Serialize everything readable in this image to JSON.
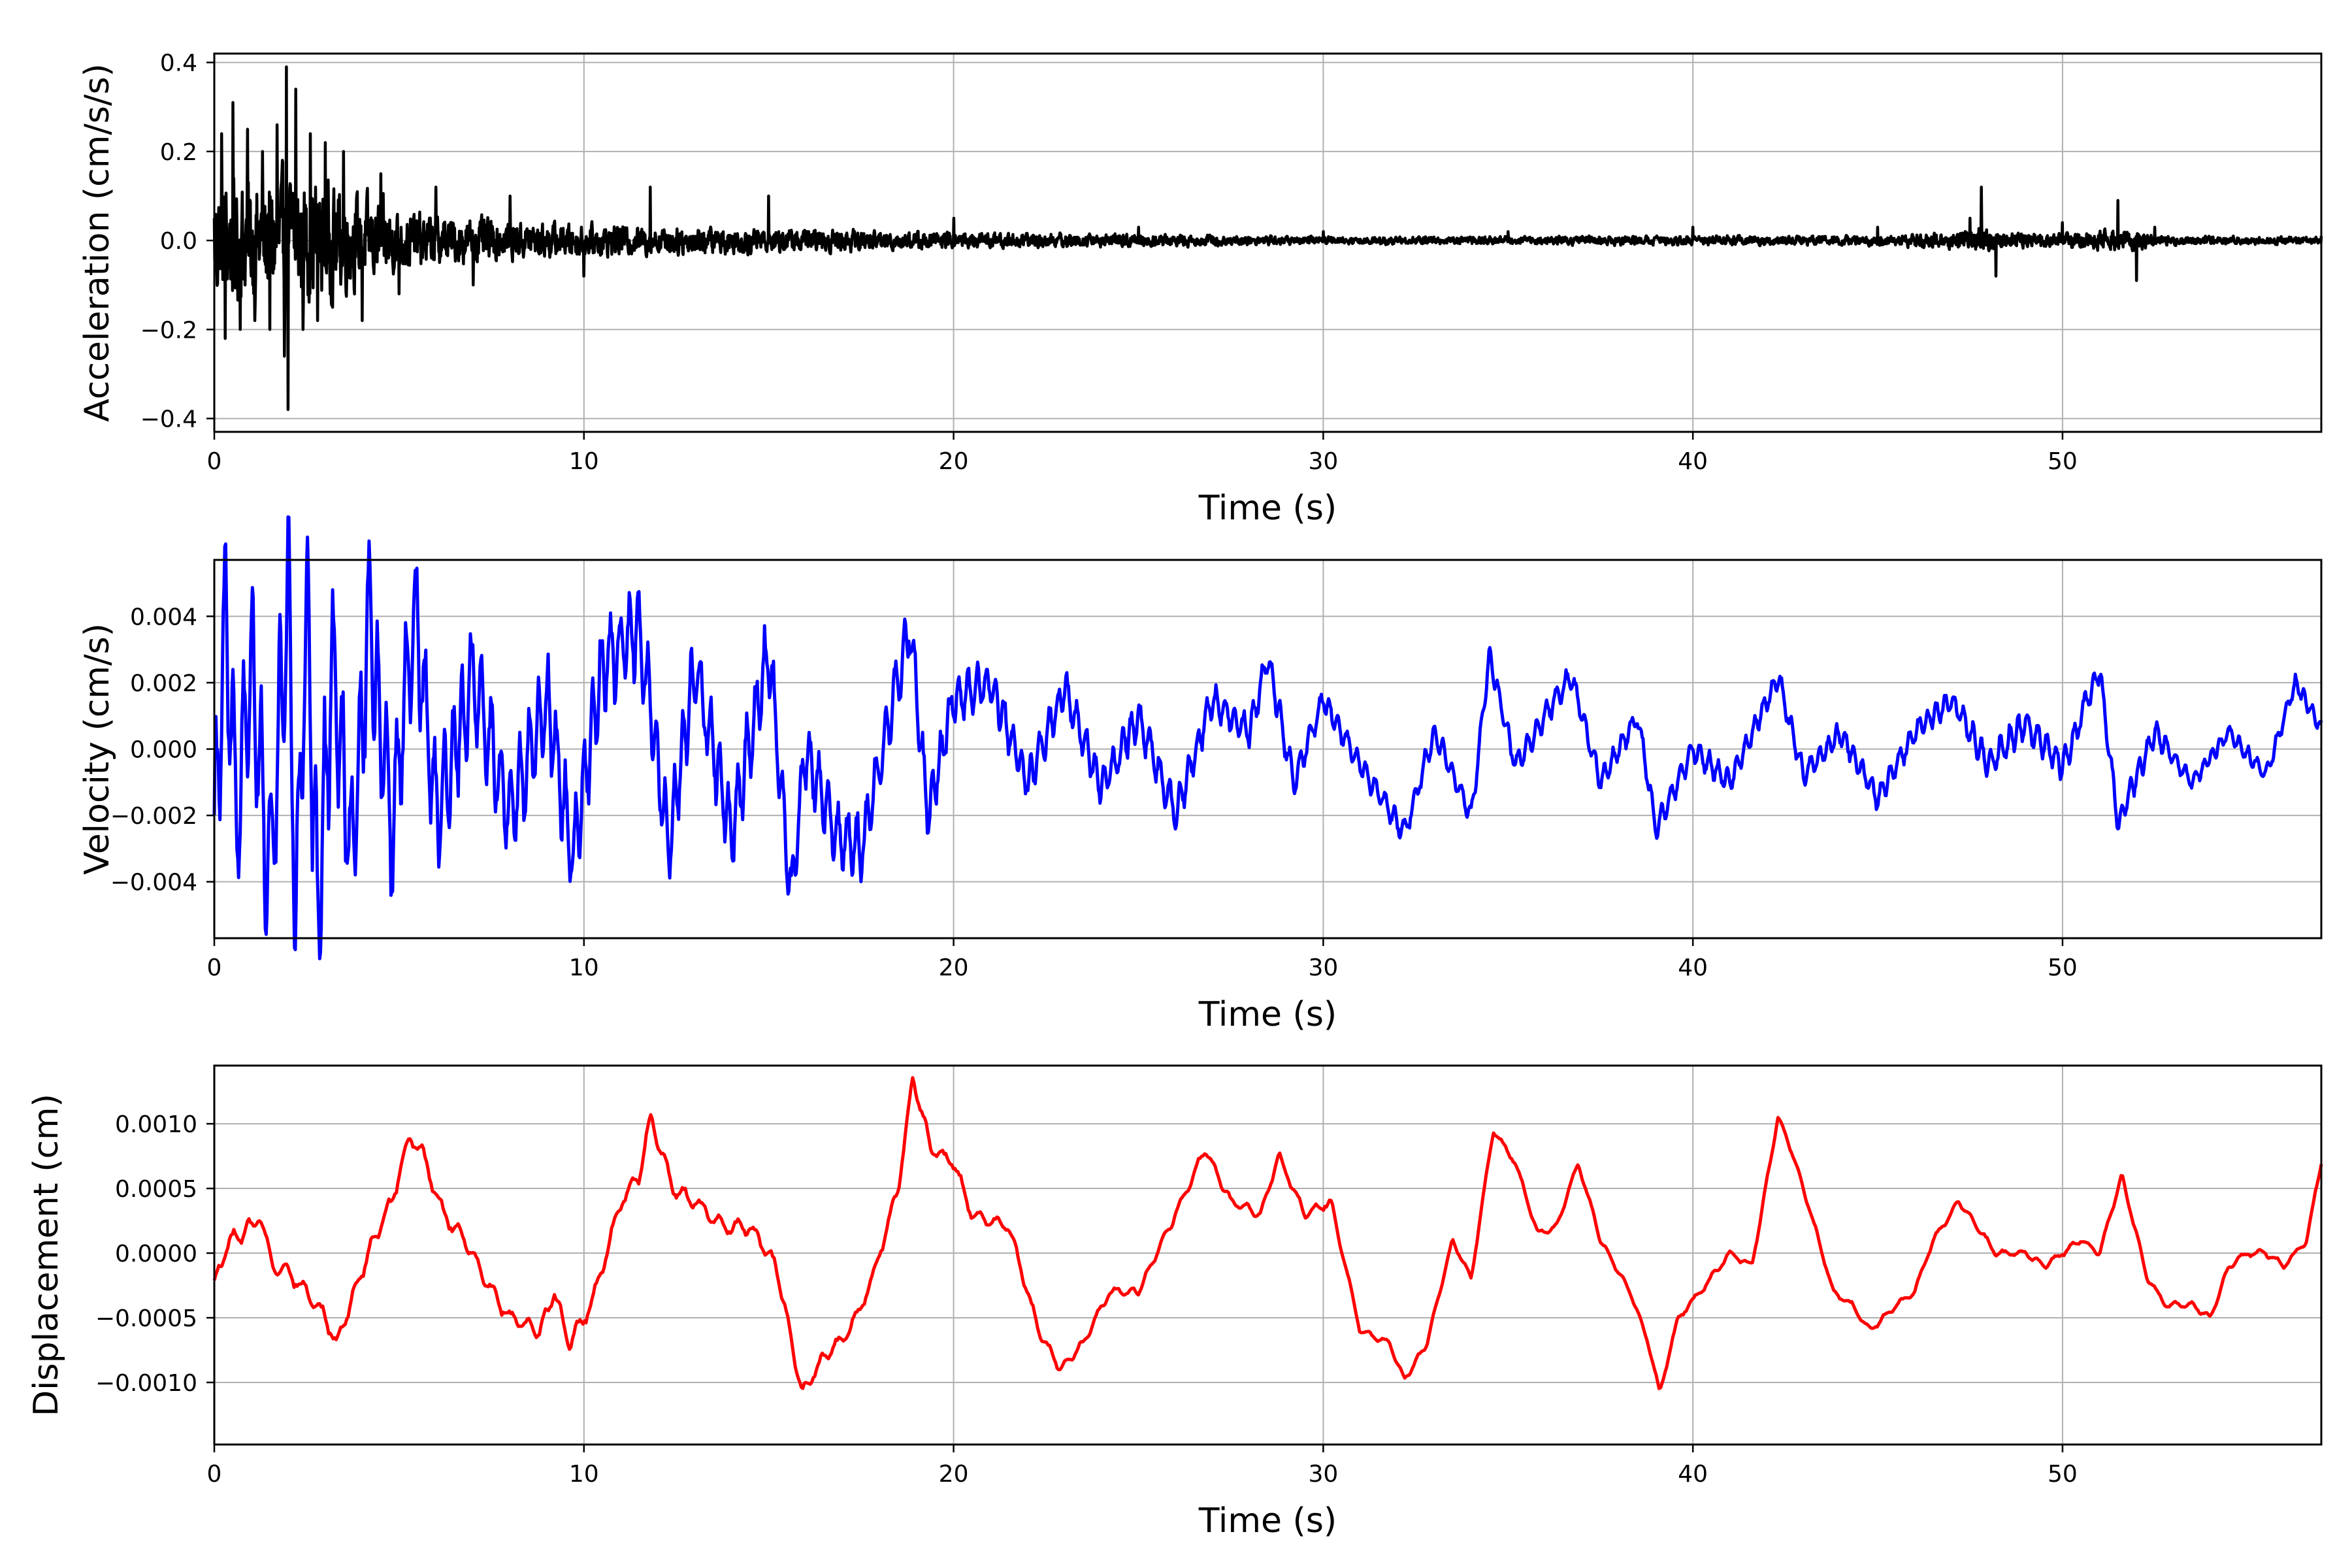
{
  "chart_data": [
    {
      "type": "line",
      "xlabel": "Time (s)",
      "ylabel": "Acceleration (cm/s/s)",
      "xlim": [
        0,
        57
      ],
      "ylim": [
        -0.43,
        0.42
      ],
      "xticks": [
        0,
        10,
        20,
        30,
        40,
        50
      ],
      "xtick_labels": [
        "0",
        "10",
        "20",
        "30",
        "40",
        "50"
      ],
      "yticks": [
        -0.4,
        -0.2,
        0.0,
        0.2,
        0.4
      ],
      "ytick_labels": [
        "−0.4",
        "−0.2",
        "0.0",
        "0.2",
        "0.4"
      ],
      "grid": true,
      "series": [
        {
          "color": "#000000",
          "x": [
            0,
            0.2,
            0.3,
            0.5,
            0.7,
            0.9,
            1.1,
            1.3,
            1.5,
            1.7,
            1.9,
            1.95,
            2.0,
            2.2,
            2.4,
            2.6,
            2.8,
            3.0,
            3.2,
            3.5,
            4.0,
            4.5,
            5.0,
            6.0,
            7.0,
            8.0,
            10.0,
            11.8,
            15.0,
            20.0,
            25.0,
            30.0,
            35.0,
            40.0,
            45.0,
            47.5,
            47.8,
            48.2,
            50.0,
            51.5,
            52.0,
            52.5,
            57.0
          ],
          "y": [
            0.05,
            0.24,
            -0.22,
            0.31,
            -0.2,
            0.25,
            -0.18,
            0.2,
            -0.2,
            0.26,
            -0.26,
            0.39,
            -0.38,
            0.34,
            -0.2,
            0.24,
            -0.18,
            0.22,
            -0.15,
            0.2,
            -0.18,
            0.15,
            -0.12,
            0.12,
            -0.1,
            0.1,
            -0.08,
            0.12,
            0.1,
            0.05,
            0.03,
            0.02,
            0.02,
            0.03,
            0.03,
            0.05,
            0.12,
            -0.08,
            0.04,
            0.09,
            -0.09,
            0.03,
            0.01
          ],
          "envelope": [
            0.2,
            0.2,
            0.2,
            0.2,
            0.2,
            0.2,
            0.2,
            0.2,
            0.2,
            0.2,
            0.2,
            0.2,
            0.2,
            0.2,
            0.2,
            0.2,
            0.2,
            0.18,
            0.17,
            0.16,
            0.14,
            0.12,
            0.1,
            0.08,
            0.07,
            0.06,
            0.05,
            0.045,
            0.04,
            0.025,
            0.02,
            0.012,
            0.012,
            0.015,
            0.015,
            0.03,
            0.05,
            0.03,
            0.02,
            0.035,
            0.035,
            0.015,
            0.01
          ]
        }
      ]
    },
    {
      "type": "line",
      "xlabel": "Time (s)",
      "ylabel": "Velocity (cm/s)",
      "xlim": [
        0,
        57
      ],
      "ylim": [
        -0.0057,
        0.0057
      ],
      "xticks": [
        0,
        10,
        20,
        30,
        40,
        50
      ],
      "xtick_labels": [
        "0",
        "10",
        "20",
        "30",
        "40",
        "50"
      ],
      "yticks": [
        -0.004,
        -0.002,
        0.0,
        0.002,
        0.004
      ],
      "ytick_labels": [
        "−0.004",
        "−0.002",
        "0.000",
        "0.002",
        "0.004"
      ],
      "grid": true,
      "series": [
        {
          "color": "#0000ff",
          "x": [
            0,
            0.3,
            0.6,
            1.0,
            1.5,
            2.0,
            2.2,
            2.5,
            2.8,
            3.2,
            3.7,
            4.2,
            4.8,
            5.4,
            6.0,
            7.0,
            8.0,
            9.0,
            9.7,
            10.5,
            11.5,
            12.3,
            13.0,
            14.0,
            15.0,
            15.6,
            16.0,
            16.8,
            17.5,
            18.2,
            18.8,
            19.3,
            20.0,
            21.0,
            22.0,
            23.0,
            24.0,
            25.0,
            26.0,
            27.0,
            28.0,
            28.5,
            29.2,
            30.0,
            31.0,
            32.2,
            33.0,
            34.0,
            34.5,
            35.2,
            36.0,
            36.7,
            37.5,
            38.5,
            39.0,
            40.0,
            41.0,
            42.3,
            43.0,
            44.0,
            45.0,
            46.0,
            47.0,
            48.0,
            49.0,
            50.0,
            51.0,
            51.5,
            52.5,
            53.5,
            54.5,
            55.5,
            56.3,
            57.0
          ],
          "y": [
            -0.0028,
            0.0041,
            -0.0025,
            0.0025,
            -0.004,
            0.0048,
            -0.005,
            0.0043,
            -0.0052,
            0.0028,
            -0.0035,
            0.004,
            -0.0025,
            0.0043,
            -0.002,
            0.002,
            -0.002,
            0.0015,
            -0.0032,
            0.0025,
            0.0037,
            -0.003,
            0.0025,
            -0.0025,
            0.003,
            -0.0044,
            0.0,
            -0.0025,
            -0.003,
            0.0005,
            0.0038,
            -0.002,
            0.0015,
            0.002,
            -0.001,
            0.0018,
            -0.0012,
            0.001,
            -0.002,
            0.0015,
            0.0005,
            0.0028,
            -0.001,
            0.0015,
            -0.0005,
            -0.0025,
            0.0005,
            -0.002,
            0.0028,
            -0.0005,
            0.001,
            0.0022,
            -0.001,
            0.001,
            -0.0024,
            0.0,
            -0.001,
            0.0022,
            -0.0008,
            0.0005,
            -0.0015,
            0.0005,
            0.0015,
            -0.0005,
            0.0008,
            -0.0005,
            0.0024,
            -0.0022,
            0.0005,
            -0.001,
            0.0005,
            -0.0008,
            0.002,
            0.0006
          ],
          "envelope": [
            0.0022,
            0.0022,
            0.0022,
            0.0022,
            0.0024,
            0.0024,
            0.0024,
            0.0024,
            0.0024,
            0.0022,
            0.002,
            0.002,
            0.0018,
            0.0018,
            0.0016,
            0.0014,
            0.0013,
            0.0012,
            0.0012,
            0.0012,
            0.0011,
            0.001,
            0.001,
            0.001,
            0.001,
            0.0009,
            0.0009,
            0.0008,
            0.0008,
            0.0008,
            0.0008,
            0.0007,
            0.0006,
            0.0006,
            0.0005,
            0.0005,
            0.0005,
            0.0005,
            0.0005,
            0.0004,
            0.0004,
            0.0004,
            0.0004,
            0.0003,
            0.0003,
            0.0003,
            0.0003,
            0.0003,
            0.0003,
            0.0003,
            0.0003,
            0.0003,
            0.0003,
            0.0003,
            0.0003,
            0.0003,
            0.0003,
            0.0003,
            0.0003,
            0.0003,
            0.0003,
            0.0003,
            0.0003,
            0.0004,
            0.0004,
            0.0004,
            0.0003,
            0.0003,
            0.0003,
            0.0002,
            0.0002,
            0.0002,
            0.0002,
            0.0002
          ]
        }
      ]
    },
    {
      "type": "line",
      "xlabel": "Time (s)",
      "ylabel": "Displacement (cm)",
      "xlim": [
        0,
        57
      ],
      "ylim": [
        -0.00148,
        0.00145
      ],
      "xticks": [
        0,
        10,
        20,
        30,
        40,
        50
      ],
      "xtick_labels": [
        "0",
        "10",
        "20",
        "30",
        "40",
        "50"
      ],
      "yticks": [
        -0.001,
        -0.0005,
        0.0,
        0.0005,
        0.001
      ],
      "ytick_labels": [
        "−0.0010",
        "−0.0005",
        "0.0000",
        "0.0005",
        "0.0010"
      ],
      "grid": true,
      "series": [
        {
          "color": "#ff0000",
          "x": [
            0,
            0.4,
            0.8,
            1.2,
            1.6,
            2.0,
            2.5,
            3.0,
            3.3,
            3.8,
            4.3,
            4.8,
            5.3,
            5.6,
            6.2,
            6.8,
            7.5,
            8.0,
            8.8,
            9.2,
            9.6,
            10.2,
            11.0,
            11.5,
            11.8,
            12.4,
            13.0,
            13.8,
            14.5,
            15.2,
            15.9,
            16.5,
            17.2,
            17.8,
            18.5,
            18.9,
            19.4,
            20.0,
            20.5,
            21.5,
            22.3,
            22.9,
            23.5,
            24.2,
            25.0,
            26.0,
            26.8,
            27.5,
            28.3,
            28.8,
            29.5,
            30.2,
            31.0,
            31.8,
            32.2,
            32.8,
            33.5,
            34.0,
            34.6,
            35.2,
            35.8,
            36.3,
            36.9,
            37.5,
            38.3,
            38.8,
            39.1,
            39.6,
            40.2,
            41.0,
            41.6,
            42.3,
            42.6,
            43.2,
            43.8,
            44.3,
            44.8,
            45.5,
            46.0,
            46.5,
            47.2,
            48.2,
            49.0,
            49.5,
            50.5,
            51.0,
            51.6,
            52.3,
            52.8,
            53.5,
            54.0,
            54.5,
            55.0,
            55.5,
            56.0,
            56.6,
            57.0
          ],
          "y": [
            -0.00025,
            0.0001,
            0.00015,
            0.0003,
            -0.0001,
            -0.00015,
            -0.0003,
            -0.0005,
            -0.0007,
            -0.0003,
            0.0001,
            0.0004,
            0.0009,
            0.0008,
            0.0003,
            0.0001,
            -0.0003,
            -0.0005,
            -0.0006,
            -0.0003,
            -0.0007,
            -0.0004,
            0.0004,
            0.0006,
            0.00105,
            0.0005,
            0.0004,
            0.0002,
            0.0002,
            -0.0001,
            -0.00108,
            -0.0008,
            -0.0006,
            -0.0002,
            0.0005,
            0.00135,
            0.0008,
            0.0007,
            0.0003,
            0.0002,
            -0.0006,
            -0.0009,
            -0.0007,
            -0.0003,
            -0.0003,
            0.0003,
            0.0008,
            0.0004,
            0.0003,
            0.00075,
            0.0003,
            0.0004,
            -0.0006,
            -0.0007,
            -0.00098,
            -0.0007,
            0.0001,
            -0.0002,
            0.00095,
            0.0007,
            0.00015,
            0.0002,
            0.0007,
            0.0001,
            -0.0003,
            -0.0007,
            -0.00108,
            -0.0005,
            -0.0003,
            0.0,
            -0.0001,
            0.00105,
            0.00085,
            0.0003,
            -0.0003,
            -0.0004,
            -0.0006,
            -0.0004,
            -0.0003,
            0.0001,
            0.0004,
            0.0,
            0.0,
            -0.0001,
            0.0001,
            0.0,
            0.0006,
            -0.0002,
            -0.0004,
            -0.0004,
            -0.0005,
            -0.0001,
            0.0,
            0.0,
            -0.0001,
            0.0001,
            0.0007
          ],
          "envelope": [
            5e-05,
            5e-05,
            5e-05,
            5e-05,
            5e-05,
            5e-05,
            5e-05,
            5e-05,
            5e-05,
            5e-05,
            5e-05,
            5e-05,
            5e-05,
            5e-05,
            5e-05,
            5e-05,
            5e-05,
            5e-05,
            5e-05,
            5e-05,
            5e-05,
            5e-05,
            5e-05,
            5e-05,
            5e-05,
            5e-05,
            5e-05,
            5e-05,
            5e-05,
            5e-05,
            4e-05,
            4e-05,
            4e-05,
            4e-05,
            4e-05,
            4e-05,
            4e-05,
            4e-05,
            4e-05,
            4e-05,
            3e-05,
            3e-05,
            3e-05,
            3e-05,
            3e-05,
            3e-05,
            3e-05,
            3e-05,
            3e-05,
            3e-05,
            3e-05,
            3e-05,
            2e-05,
            2e-05,
            2e-05,
            2e-05,
            2e-05,
            2e-05,
            2e-05,
            2e-05,
            2e-05,
            2e-05,
            2e-05,
            2e-05,
            2e-05,
            2e-05,
            2e-05,
            2e-05,
            2e-05,
            2e-05,
            2e-05,
            2e-05,
            2e-05,
            2e-05,
            2e-05,
            2e-05,
            2e-05,
            2e-05,
            2e-05,
            2e-05,
            2e-05,
            2e-05,
            2e-05,
            2e-05,
            2e-05,
            2e-05,
            2e-05,
            2e-05,
            2e-05,
            2e-05,
            2e-05,
            2e-05,
            2e-05,
            2e-05,
            2e-05,
            2e-05,
            2e-05
          ]
        }
      ]
    }
  ]
}
